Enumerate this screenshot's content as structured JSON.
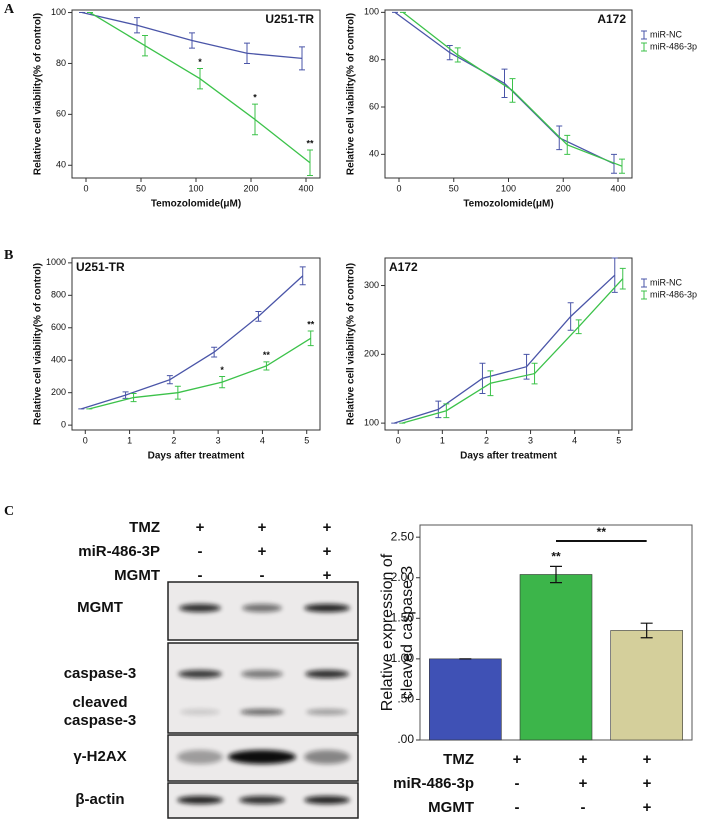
{
  "panels": [
    "A",
    "B",
    "C"
  ],
  "blot": {
    "conditions": [
      {
        "name": "TMZ",
        "signs": [
          "+",
          "+",
          "+"
        ]
      },
      {
        "name": "miR-486-3P",
        "signs": [
          "-",
          "+",
          "+"
        ]
      },
      {
        "name": "MGMT",
        "signs": [
          "-",
          "-",
          "+"
        ]
      }
    ],
    "bands": [
      [
        "MGMT"
      ],
      [
        "caspase-3"
      ],
      [
        "cleaved",
        "caspase-3"
      ],
      [
        "γ-H2AX"
      ],
      [
        "β-actin"
      ]
    ]
  },
  "chart_data": [
    {
      "type": "line",
      "title": "U251-TR",
      "title_position": "top-right",
      "xlabel": "Temozolomide(μM)",
      "ylabel": "Relative cell viability(% of control)",
      "categories": [
        0,
        50,
        100,
        200,
        400
      ],
      "ylim": [
        35,
        101
      ],
      "yticks": [
        40,
        60,
        80,
        100
      ],
      "legend": false,
      "series": [
        {
          "name": "miR-NC",
          "color": "#4a55a8",
          "values": [
            100,
            95,
            89,
            84,
            82
          ],
          "errors": [
            0,
            3,
            3,
            4,
            4.5
          ],
          "significance": [
            null,
            null,
            null,
            null,
            null
          ]
        },
        {
          "name": "miR-486-3p",
          "color": "#3cc24a",
          "values": [
            100,
            87,
            74,
            58,
            41
          ],
          "errors": [
            0,
            4,
            4,
            6,
            5
          ],
          "significance": [
            null,
            null,
            "*",
            "*",
            "**"
          ]
        }
      ]
    },
    {
      "type": "line",
      "title": "A172",
      "title_position": "top-right",
      "xlabel": "Temozolomide(μM)",
      "ylabel": "Relative cell viability(% of control)",
      "categories": [
        0,
        50,
        100,
        200,
        400
      ],
      "ylim": [
        30,
        101
      ],
      "yticks": [
        40,
        60,
        80,
        100
      ],
      "legend": "outside right",
      "series": [
        {
          "name": "miR-NC",
          "color": "#4a55a8",
          "values": [
            100,
            83,
            70,
            47,
            36
          ],
          "errors": [
            0,
            3,
            6,
            5,
            4
          ],
          "significance": [
            null,
            null,
            null,
            null,
            null
          ]
        },
        {
          "name": "miR-486-3p",
          "color": "#3cc24a",
          "values": [
            100,
            82,
            67,
            44,
            35
          ],
          "errors": [
            0,
            3,
            5,
            4,
            3
          ],
          "significance": [
            null,
            null,
            null,
            null,
            null
          ]
        }
      ]
    },
    {
      "type": "line",
      "title": "U251-TR",
      "title_position": "top-left",
      "xlabel": "Days after treatment",
      "ylabel": "Relative cell viability(% of control)",
      "x": [
        0,
        1,
        2,
        3,
        4,
        5
      ],
      "xlim": [
        -0.3,
        5.3
      ],
      "xticks": [
        0,
        1,
        2,
        3,
        4,
        5
      ],
      "ylim": [
        -30,
        1030
      ],
      "yticks": [
        0,
        200,
        400,
        600,
        800,
        1000
      ],
      "legend": false,
      "series": [
        {
          "name": "miR-NC",
          "color": "#4a55a8",
          "values": [
            100,
            185,
            280,
            450,
            670,
            920
          ],
          "errors": [
            0,
            20,
            25,
            30,
            30,
            55
          ],
          "significance": [
            null,
            null,
            null,
            null,
            null,
            null
          ]
        },
        {
          "name": "miR-486-3p",
          "color": "#3cc24a",
          "values": [
            100,
            170,
            200,
            265,
            365,
            535
          ],
          "errors": [
            0,
            25,
            40,
            35,
            25,
            45
          ],
          "significance": [
            null,
            null,
            null,
            "*",
            "**",
            "**"
          ]
        }
      ]
    },
    {
      "type": "line",
      "title": "A172",
      "title_position": "top-left",
      "xlabel": "Days after treatment",
      "ylabel": "Relative cell viability(% of control)",
      "x": [
        0,
        1,
        2,
        3,
        4,
        5
      ],
      "xlim": [
        -0.3,
        5.3
      ],
      "xticks": [
        0,
        1,
        2,
        3,
        4,
        5
      ],
      "ylim": [
        90,
        340
      ],
      "yticks": [
        100,
        200,
        300
      ],
      "legend": "outside right",
      "series": [
        {
          "name": "miR-NC",
          "color": "#4a55a8",
          "values": [
            100,
            120,
            165,
            182,
            255,
            315
          ],
          "errors": [
            0,
            12,
            22,
            18,
            20,
            25
          ],
          "significance": [
            null,
            null,
            null,
            null,
            null,
            null
          ]
        },
        {
          "name": "miR-486-3p",
          "color": "#3cc24a",
          "values": [
            100,
            118,
            158,
            172,
            240,
            310
          ],
          "errors": [
            0,
            10,
            18,
            15,
            10,
            15
          ],
          "significance": [
            null,
            null,
            null,
            null,
            null,
            null
          ]
        }
      ]
    },
    {
      "type": "bar",
      "ylabel": [
        "Relative expression of",
        "cleaved caspase-3"
      ],
      "categories": [
        null,
        null,
        null
      ],
      "values": [
        1.0,
        2.04,
        1.35
      ],
      "errors": [
        0,
        0.1,
        0.09
      ],
      "colors": [
        "#3f51b5",
        "#3cb54a",
        "#d4cf9b"
      ],
      "significance": [
        null,
        "**",
        null
      ],
      "comparison": "**",
      "ylim": [
        0,
        2.65
      ],
      "yticks": [
        {
          "value": 0,
          "label": ".00"
        },
        {
          "value": 0.5,
          "label": ".50"
        },
        {
          "value": 1,
          "label": "1.00"
        },
        {
          "value": 1.5,
          "label": "1.50"
        },
        {
          "value": 2,
          "label": "2.00"
        },
        {
          "value": 2.5,
          "label": "2.50"
        }
      ],
      "conditions": [
        {
          "name": "TMZ",
          "signs": [
            "+",
            "+",
            "+"
          ]
        },
        {
          "name": "miR-486-3p",
          "signs": [
            "-",
            "+",
            "+"
          ]
        },
        {
          "name": "MGMT",
          "signs": [
            "-",
            "-",
            "+"
          ]
        }
      ]
    }
  ]
}
